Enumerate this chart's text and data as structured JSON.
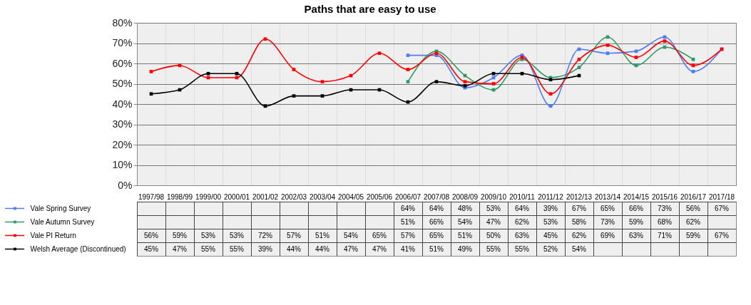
{
  "chart_data": {
    "type": "line",
    "title": "Paths that are easy to use",
    "categories": [
      "1997/98",
      "1998/99",
      "1999/00",
      "2000/01",
      "2001/02",
      "2002/03",
      "2003/04",
      "2004/05",
      "2005/06",
      "2006/07",
      "2007/08",
      "2008/09",
      "2009/10",
      "2010/11",
      "2011/12",
      "2012/13",
      "2013/14",
      "2014/15",
      "2015/16",
      "2016/17",
      "2017/18"
    ],
    "series": [
      {
        "name": "Vale Spring Survey",
        "color": "#4f7cf7",
        "values": [
          null,
          null,
          null,
          null,
          null,
          null,
          null,
          null,
          null,
          64,
          64,
          48,
          53,
          64,
          39,
          67,
          65,
          66,
          73,
          56,
          67
        ],
        "value_labels": [
          null,
          null,
          null,
          null,
          null,
          null,
          null,
          null,
          null,
          "64%",
          "64%",
          "48%",
          "53%",
          "64%",
          "39%",
          "67%",
          "65%",
          "66%",
          "73%",
          "56%",
          "67%"
        ]
      },
      {
        "name": "Vale Autumn Survey",
        "color": "#2e9a68",
        "values": [
          null,
          null,
          null,
          null,
          null,
          null,
          null,
          null,
          null,
          51,
          66,
          54,
          47,
          62,
          53,
          58,
          73,
          59,
          68,
          62,
          null
        ],
        "value_labels": [
          null,
          null,
          null,
          null,
          null,
          null,
          null,
          null,
          null,
          "51%",
          "66%",
          "54%",
          "47%",
          "62%",
          "53%",
          "58%",
          "73%",
          "59%",
          "68%",
          "62%",
          null
        ]
      },
      {
        "name": "Vale PI Return",
        "color": "#ff0000",
        "values": [
          56,
          59,
          53,
          53,
          72,
          57,
          51,
          54,
          65,
          57,
          65,
          51,
          50,
          63,
          45,
          62,
          69,
          63,
          71,
          59,
          67
        ],
        "value_labels": [
          "56%",
          "59%",
          "53%",
          "53%",
          "72%",
          "57%",
          "51%",
          "54%",
          "65%",
          "57%",
          "65%",
          "51%",
          "50%",
          "63%",
          "45%",
          "62%",
          "69%",
          "63%",
          "71%",
          "59%",
          "67%"
        ]
      },
      {
        "name": "Welsh Average (Discontinued)",
        "color": "#000000",
        "values": [
          45,
          47,
          55,
          55,
          39,
          44,
          44,
          47,
          47,
          41,
          51,
          49,
          55,
          55,
          52,
          54,
          null,
          null,
          null,
          null,
          null
        ],
        "value_labels": [
          "45%",
          "47%",
          "55%",
          "55%",
          "39%",
          "44%",
          "44%",
          "47%",
          "47%",
          "41%",
          "51%",
          "49%",
          "55%",
          "55%",
          "52%",
          "54%",
          null,
          null,
          null,
          null,
          null
        ]
      }
    ],
    "ylim": [
      0,
      80
    ],
    "yticks": [
      {
        "value": 0,
        "label": "0%"
      },
      {
        "value": 10,
        "label": "10%"
      },
      {
        "value": 20,
        "label": "20%"
      },
      {
        "value": 30,
        "label": "30%"
      },
      {
        "value": 40,
        "label": "40%"
      },
      {
        "value": 50,
        "label": "50%"
      },
      {
        "value": 60,
        "label": "60%"
      },
      {
        "value": 70,
        "label": "70%"
      },
      {
        "value": 80,
        "label": "80%"
      }
    ],
    "grid": true,
    "legend": "bottom left",
    "marker": "square",
    "line_style": "solid"
  }
}
